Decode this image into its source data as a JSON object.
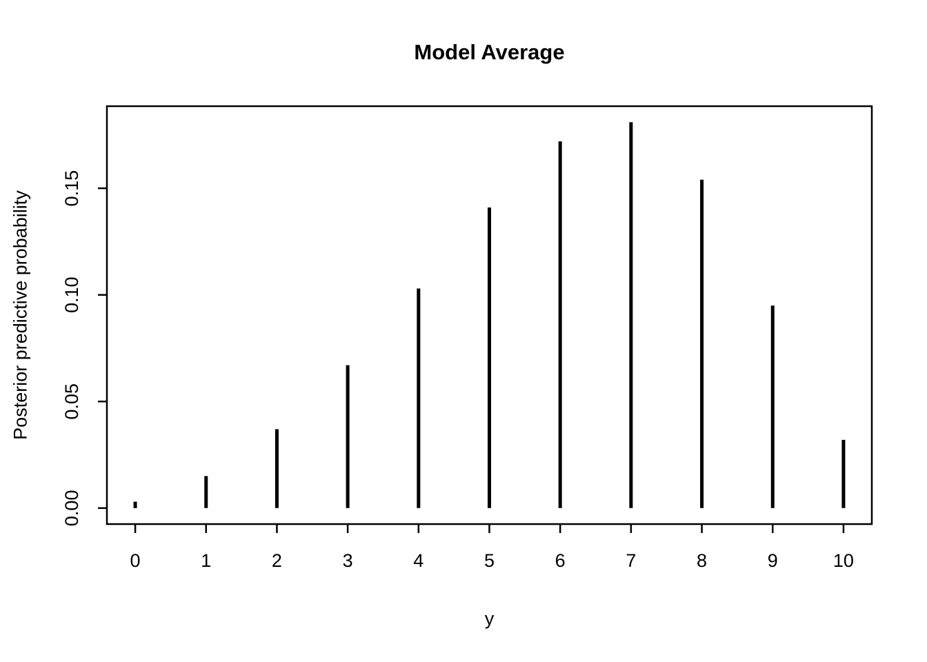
{
  "chart_data": {
    "type": "bar",
    "subtype": "spike",
    "title": "Model Average",
    "xlabel": "y",
    "ylabel": "Posterior predictive probability",
    "x": [
      0,
      1,
      2,
      3,
      4,
      5,
      6,
      7,
      8,
      9,
      10
    ],
    "values": [
      0.003,
      0.015,
      0.037,
      0.067,
      0.103,
      0.141,
      0.172,
      0.181,
      0.154,
      0.095,
      0.032
    ],
    "x_ticks": [
      0,
      1,
      2,
      3,
      4,
      5,
      6,
      7,
      8,
      9,
      10
    ],
    "x_tick_labels": [
      "0",
      "1",
      "2",
      "3",
      "4",
      "5",
      "6",
      "7",
      "8",
      "9",
      "10"
    ],
    "y_ticks": [
      0.0,
      0.05,
      0.1,
      0.15
    ],
    "y_tick_labels": [
      "0.00",
      "0.05",
      "0.10",
      "0.15"
    ],
    "xlim": [
      -0.4,
      10.4
    ],
    "ylim": [
      -0.0075,
      0.1885
    ],
    "grid": false,
    "legend": null,
    "line_color": "#000000",
    "frame_color": "#000000",
    "background": "#ffffff"
  }
}
